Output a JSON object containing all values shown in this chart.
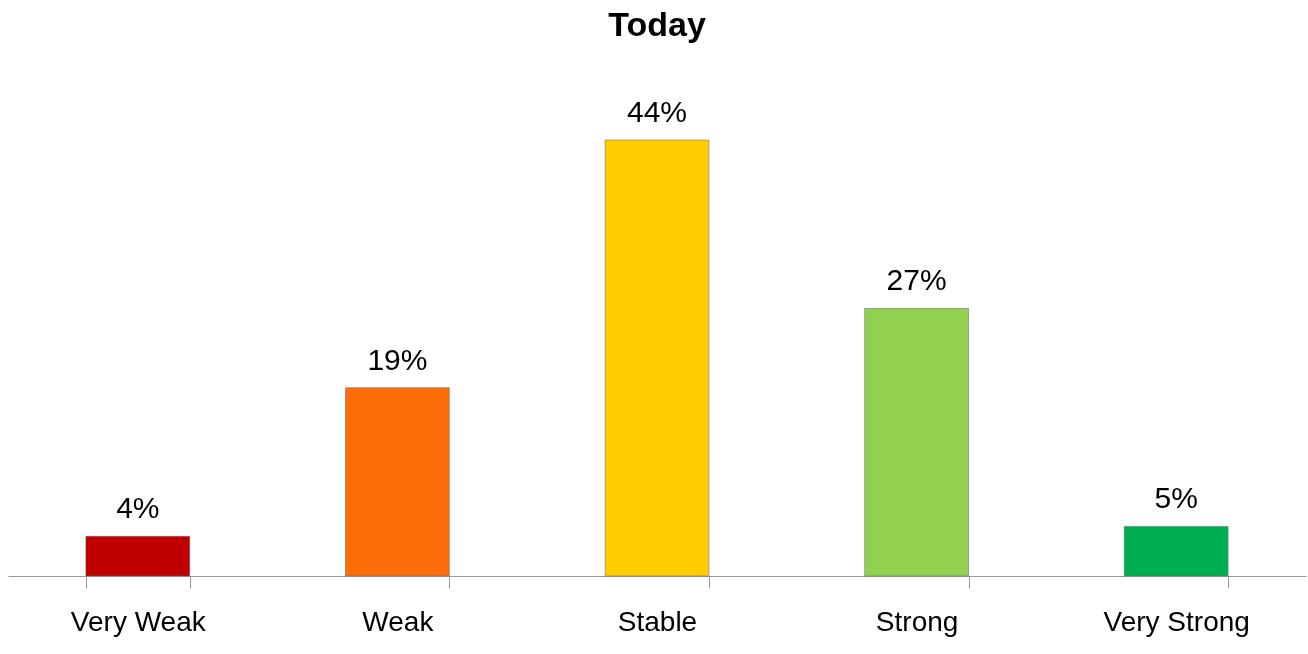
{
  "chart_data": {
    "type": "bar",
    "title": "Today",
    "categories": [
      "Very Weak",
      "Weak",
      "Stable",
      "Strong",
      "Very Strong"
    ],
    "values": [
      4,
      19,
      44,
      27,
      5
    ],
    "colors": [
      "#c00000",
      "#ff6d0a",
      "#ffcc00",
      "#92d050",
      "#00b050"
    ],
    "value_labels": [
      "4%",
      "19%",
      "44%",
      "27%",
      "5%"
    ],
    "tick_labels": "x",
    "grid": false
  }
}
